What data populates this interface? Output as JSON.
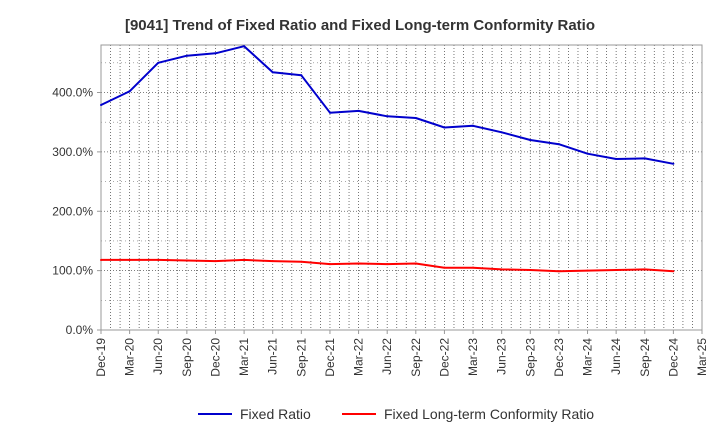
{
  "chart_data": {
    "type": "line",
    "title": "[9041]  Trend of Fixed Ratio and Fixed Long-term Conformity Ratio",
    "xlabel": "",
    "ylabel": "",
    "x": [
      "Dec-19",
      "Mar-20",
      "Jun-20",
      "Sep-20",
      "Dec-20",
      "Mar-21",
      "Jun-21",
      "Sep-21",
      "Dec-21",
      "Mar-22",
      "Jun-22",
      "Sep-22",
      "Dec-22",
      "Mar-23",
      "Jun-23",
      "Sep-23",
      "Dec-23",
      "Mar-24",
      "Jun-24",
      "Sep-24",
      "Dec-24"
    ],
    "x_tick_labels": [
      "Dec-19",
      "Mar-20",
      "Jun-20",
      "Sep-20",
      "Dec-20",
      "Mar-21",
      "Jun-21",
      "Sep-21",
      "Dec-21",
      "Mar-22",
      "Jun-22",
      "Sep-22",
      "Dec-22",
      "Mar-23",
      "Jun-23",
      "Sep-23",
      "Dec-23",
      "Mar-24",
      "Jun-24",
      "Sep-24",
      "Dec-24",
      "Mar-25"
    ],
    "y_ticks": [
      0,
      100,
      200,
      300,
      400
    ],
    "y_tick_labels": [
      "0.0%",
      "100.0%",
      "200.0%",
      "300.0%",
      "400.0%"
    ],
    "ylim": [
      0,
      480
    ],
    "grid": true,
    "legend_position": "bottom",
    "series": [
      {
        "name": "Fixed Ratio",
        "color": "#0000cc",
        "values": [
          379,
          402,
          450,
          462,
          466,
          478,
          434,
          429,
          366,
          369,
          360,
          357,
          341,
          344,
          333,
          320,
          313,
          297,
          288,
          289,
          280
        ]
      },
      {
        "name": "Fixed Long-term Conformity Ratio",
        "color": "#ff0000",
        "values": [
          118,
          118,
          118,
          117,
          116,
          118,
          116,
          115,
          111,
          112,
          111,
          112,
          105,
          105,
          102,
          101,
          99,
          100,
          101,
          102,
          99
        ]
      }
    ]
  }
}
